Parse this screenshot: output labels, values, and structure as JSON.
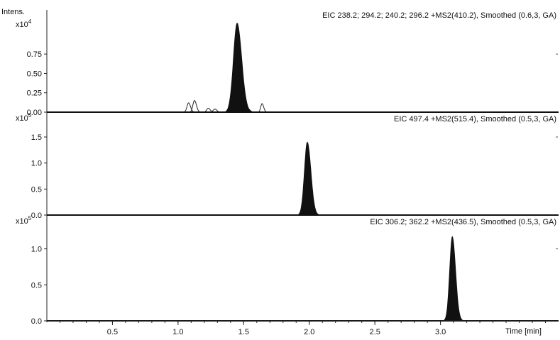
{
  "chart_data": {
    "type": "line",
    "title": "",
    "y_axis_label": "Intens.",
    "x_axis": {
      "label": "Time [min]",
      "range": [
        0.0,
        3.9
      ],
      "ticks": [
        0.5,
        1.0,
        1.5,
        2.0,
        2.5,
        3.0
      ],
      "tick_labels": [
        "0.5",
        "1.0",
        "1.5",
        "2.0",
        "2.5",
        "3.0"
      ]
    },
    "grid": false,
    "legend": "none",
    "panels": [
      {
        "name": "EIC 238.2; 294.2; 240.2; 296.2 +MS2(410.2), Smoothed (0.6,3, GA)",
        "y_exponent": {
          "base": "x10",
          "power": "4"
        },
        "y_range": [
          0.0,
          1.32
        ],
        "y_ticks": [
          0.0,
          0.25,
          0.5,
          0.75
        ],
        "y_tick_labels": [
          "0.00",
          "0.25",
          "0.50",
          "0.75"
        ],
        "filled_peaks": [
          {
            "center": 1.45,
            "height": 1.15,
            "width": 0.028
          },
          {
            "center": 1.515,
            "height": 0.08,
            "width": 0.018
          }
        ],
        "open_peaks": [
          {
            "center": 1.08,
            "height": 0.12,
            "width": 0.012
          },
          {
            "center": 1.125,
            "height": 0.15,
            "width": 0.012
          },
          {
            "center": 1.23,
            "height": 0.05,
            "width": 0.012
          },
          {
            "center": 1.28,
            "height": 0.04,
            "width": 0.012
          },
          {
            "center": 1.64,
            "height": 0.11,
            "width": 0.01
          }
        ]
      },
      {
        "name": "EIC 497.4 +MS2(515.4), Smoothed (0.5,3, GA)",
        "y_exponent": {
          "base": "x10",
          "power": "5"
        },
        "y_range": [
          0.0,
          1.95
        ],
        "y_ticks": [
          0.0,
          0.5,
          1.0,
          1.5
        ],
        "y_tick_labels": [
          "0.0",
          "0.5",
          "1.0",
          "1.5"
        ],
        "filled_peaks": [
          {
            "center": 1.985,
            "height": 1.4,
            "width": 0.022
          }
        ],
        "open_peaks": []
      },
      {
        "name": "EIC 306.2; 362.2 +MS2(436.5), Smoothed (0.5,3, GA)",
        "y_exponent": {
          "base": "x10",
          "power": "5"
        },
        "y_range": [
          0.0,
          1.45
        ],
        "y_ticks": [
          0.0,
          0.5,
          1.0
        ],
        "y_tick_labels": [
          "0.0",
          "0.5",
          "1.0"
        ],
        "filled_peaks": [
          {
            "center": 3.09,
            "height": 1.17,
            "width": 0.02
          }
        ],
        "open_peaks": []
      }
    ]
  }
}
